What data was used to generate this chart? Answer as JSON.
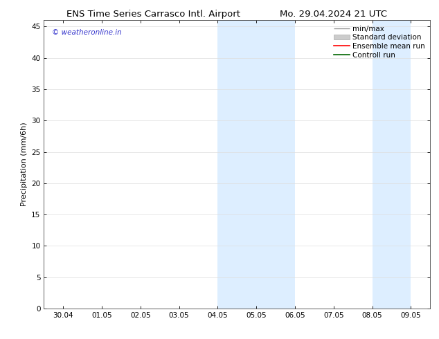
{
  "title_left": "ENS Time Series Carrasco Intl. Airport",
  "title_right": "Mo. 29.04.2024 21 UTC",
  "ylabel": "Precipitation (mm/6h)",
  "xtick_labels": [
    "30.04",
    "01.05",
    "02.05",
    "03.05",
    "04.05",
    "05.05",
    "06.05",
    "07.05",
    "08.05",
    "09.05"
  ],
  "xtick_positions": [
    0,
    1,
    2,
    3,
    4,
    5,
    6,
    7,
    8,
    9
  ],
  "ylim": [
    0,
    46
  ],
  "ytick_positions": [
    0,
    5,
    10,
    15,
    20,
    25,
    30,
    35,
    40,
    45
  ],
  "ytick_labels": [
    "0",
    "5",
    "10",
    "15",
    "20",
    "25",
    "30",
    "35",
    "40",
    "45"
  ],
  "shaded_regions": [
    {
      "xstart": 4.0,
      "xend": 4.5,
      "color": "#ddeeff"
    },
    {
      "xstart": 4.5,
      "xend": 5.0,
      "color": "#ddeeff"
    },
    {
      "xstart": 5.0,
      "xend": 5.5,
      "color": "#ddeeff"
    },
    {
      "xstart": 5.5,
      "xend": 6.0,
      "color": "#ddeeff"
    },
    {
      "xstart": 8.0,
      "xend": 8.5,
      "color": "#ddeeff"
    },
    {
      "xstart": 8.5,
      "xend": 9.0,
      "color": "#ddeeff"
    }
  ],
  "legend_labels": [
    "min/max",
    "Standard deviation",
    "Ensemble mean run",
    "Controll run"
  ],
  "legend_colors": [
    "#999999",
    "#cccccc",
    "#ff0000",
    "#006600"
  ],
  "watermark": "© weatheronline.in",
  "watermark_color": "#3333cc",
  "background_color": "#ffffff",
  "plot_bg_color": "#ffffff",
  "grid_color": "#dddddd",
  "axis_color": "#444444",
  "title_fontsize": 9.5,
  "label_fontsize": 8,
  "tick_fontsize": 7.5,
  "legend_fontsize": 7.5
}
